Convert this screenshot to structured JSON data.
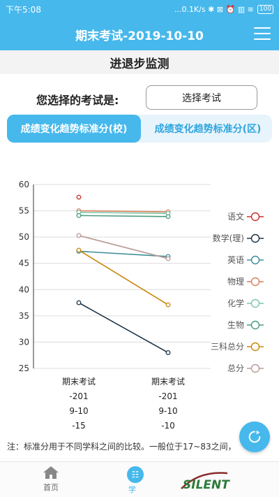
{
  "status": {
    "time": "下午5:08",
    "right": "...0.1K/s ✱ ⊠ ⏰ ▥ ≋",
    "battery": "100"
  },
  "header": {
    "title": "期末考试-2019-10-10"
  },
  "subheader": {
    "title": "进退步监测"
  },
  "exam_select": {
    "label": "您选择的考试是:",
    "button_label": "选择考试"
  },
  "tabs": [
    {
      "label": "成绩变化趋势标准分(校)",
      "active": true
    },
    {
      "label": "成绩变化趋势标准分(区)",
      "active": false
    }
  ],
  "chart_data": {
    "type": "line",
    "categories": [
      "期末考试",
      "期末考试"
    ],
    "category_details": [
      [
        "-201",
        "9-10",
        "-15"
      ],
      [
        "-201",
        "9-10",
        "-10"
      ]
    ],
    "ylim": [
      25,
      60
    ],
    "yticks": [
      25,
      30,
      35,
      40,
      45,
      50,
      55,
      60
    ],
    "grid": true,
    "legend_position": "right",
    "series": [
      {
        "name": "语文",
        "values": [
          57.6,
          null
        ],
        "color": "#c9302c"
      },
      {
        "name": "数学(理)",
        "values": [
          37.5,
          28
        ],
        "color": "#1c3346"
      },
      {
        "name": "英语",
        "values": [
          47.3,
          46.3
        ],
        "color": "#3e8d9b"
      },
      {
        "name": "物理",
        "values": [
          55,
          54.8
        ],
        "color": "#d97f5c"
      },
      {
        "name": "化学",
        "values": [
          54.7,
          54.5
        ],
        "color": "#7cc6a9"
      },
      {
        "name": "生物",
        "values": [
          54.1,
          53.9
        ],
        "color": "#4a9b7c"
      },
      {
        "name": "三科总分",
        "values": [
          47.5,
          37.1
        ],
        "color": "#c8860a"
      },
      {
        "name": "总分",
        "values": [
          50.3,
          45.9
        ],
        "color": "#b89a95"
      }
    ]
  },
  "note": "注：标准分用于不同学科之间的比较。一般位于17~83之间，",
  "bottom_nav": {
    "home_label": "首页",
    "study_label": "学",
    "study_icon_text": "☷",
    "logo_text": "SILENT"
  },
  "colors": {
    "primary": "#46b8ec"
  }
}
